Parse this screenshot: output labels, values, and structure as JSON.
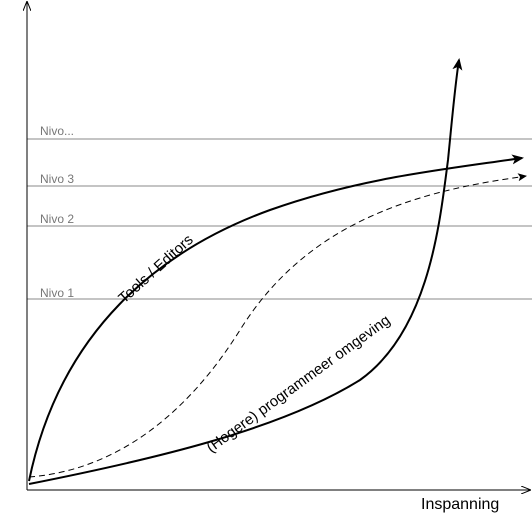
{
  "levels": [
    {
      "label": "Nivo..."
    },
    {
      "label": "Nivo 3"
    },
    {
      "label": "Nivo 2"
    },
    {
      "label": "Nivo 1"
    }
  ],
  "curves": {
    "tools_label": "Tools / Editors",
    "programming_label": "(Hogere) programmeer omgeving"
  },
  "axes": {
    "x_label": "Inspanning"
  },
  "colors": {
    "axis": "#000000",
    "level_line": "#888888",
    "curve": "#000000"
  }
}
